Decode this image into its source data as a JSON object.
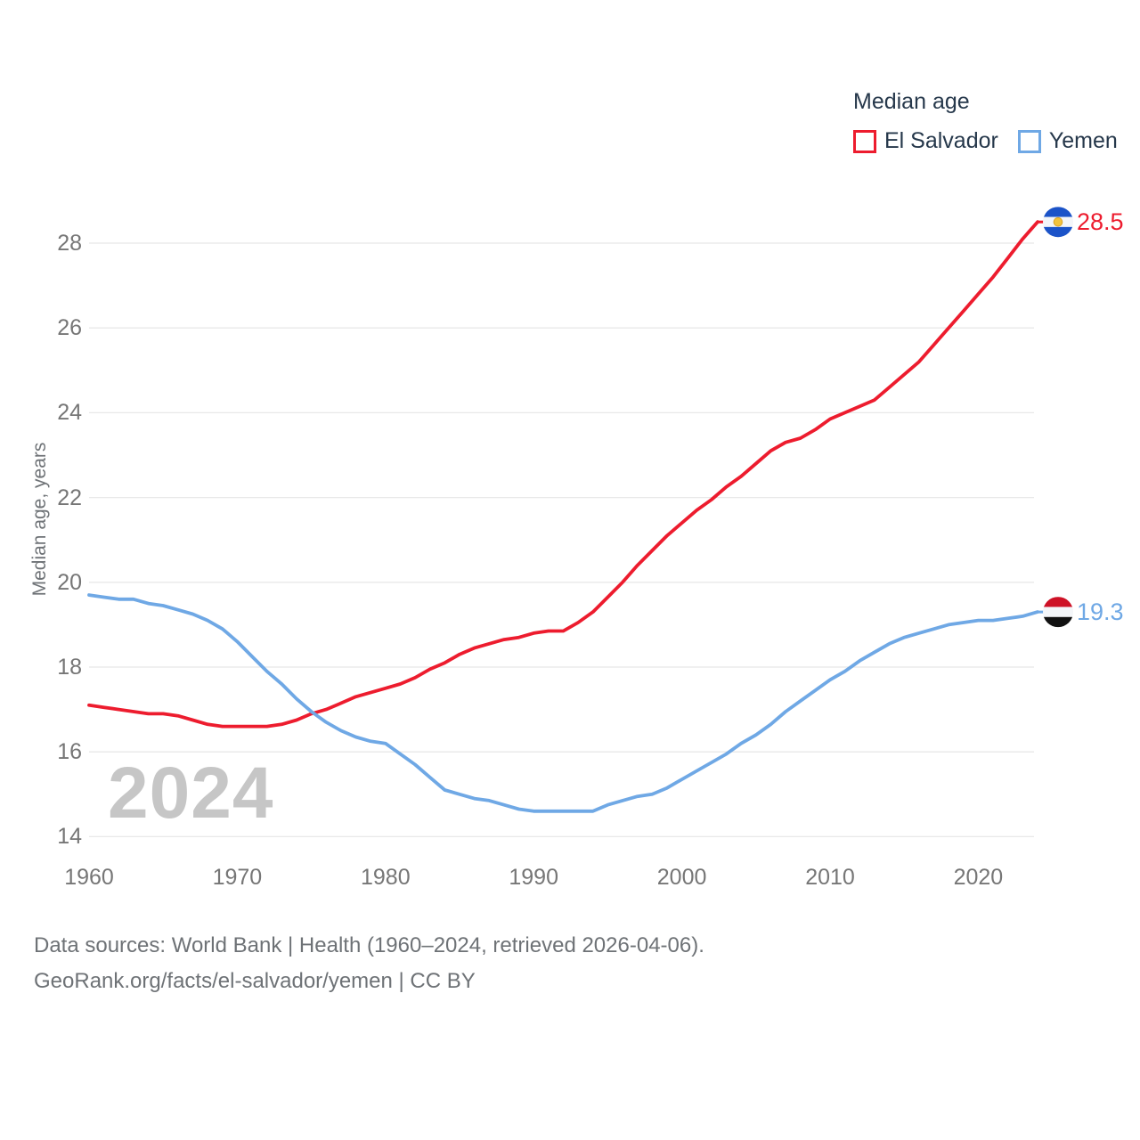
{
  "legend": {
    "title": "Median age",
    "items": [
      {
        "label": "El Salvador",
        "color": "#ED1C2E"
      },
      {
        "label": "Yemen",
        "color": "#6FA8E5"
      }
    ]
  },
  "watermark": "2024",
  "footer": {
    "line1": "Data sources: World Bank | Health (1960–2024, retrieved 2026-04-06).",
    "line2": "GeoRank.org/facts/el-salvador/yemen | CC BY"
  },
  "chart_data": {
    "type": "line",
    "title": "Median age",
    "xlabel": "",
    "ylabel": "Median age, years",
    "ylim": [
      13.6,
      29.2
    ],
    "xlim": [
      1960,
      2024
    ],
    "grid": "horizontal",
    "legend_position": "top-right",
    "yticks": [
      14,
      16,
      18,
      20,
      22,
      24,
      26,
      28
    ],
    "xticks": [
      1960,
      1970,
      1980,
      1990,
      2000,
      2010,
      2020
    ],
    "x": [
      1960,
      1961,
      1962,
      1963,
      1964,
      1965,
      1966,
      1967,
      1968,
      1969,
      1970,
      1971,
      1972,
      1973,
      1974,
      1975,
      1976,
      1977,
      1978,
      1979,
      1980,
      1981,
      1982,
      1983,
      1984,
      1985,
      1986,
      1987,
      1988,
      1989,
      1990,
      1991,
      1992,
      1993,
      1994,
      1995,
      1996,
      1997,
      1998,
      1999,
      2000,
      2001,
      2002,
      2003,
      2004,
      2005,
      2006,
      2007,
      2008,
      2009,
      2010,
      2011,
      2012,
      2013,
      2014,
      2015,
      2016,
      2017,
      2018,
      2019,
      2020,
      2021,
      2022,
      2023,
      2024
    ],
    "series": [
      {
        "name": "El Salvador",
        "color": "#ED1C2E",
        "end_value": 28.5,
        "end_label": "28.5",
        "flag": {
          "name": "el-salvador-flag-icon",
          "stripes": [
            "#1B53C8",
            "#F4F6F9",
            "#1B53C8"
          ],
          "emblem": "#F2C33D"
        },
        "values": [
          17.1,
          17.05,
          17.0,
          16.95,
          16.9,
          16.9,
          16.85,
          16.75,
          16.65,
          16.6,
          16.6,
          16.6,
          16.6,
          16.65,
          16.75,
          16.9,
          17.0,
          17.15,
          17.3,
          17.4,
          17.5,
          17.6,
          17.75,
          17.95,
          18.1,
          18.3,
          18.45,
          18.55,
          18.65,
          18.7,
          18.8,
          18.85,
          18.85,
          19.05,
          19.3,
          19.65,
          20.0,
          20.4,
          20.75,
          21.1,
          21.4,
          21.7,
          21.95,
          22.25,
          22.5,
          22.8,
          23.1,
          23.3,
          23.4,
          23.6,
          23.85,
          24.0,
          24.15,
          24.3,
          24.6,
          24.9,
          25.2,
          25.6,
          26.0,
          26.4,
          26.8,
          27.2,
          27.65,
          28.1,
          28.5
        ]
      },
      {
        "name": "Yemen",
        "color": "#6FA8E5",
        "end_value": 19.3,
        "end_label": "19.3",
        "flag": {
          "name": "yemen-flag-icon",
          "stripes": [
            "#CE1126",
            "#F4F6F9",
            "#111111"
          ],
          "emblem": null
        },
        "values": [
          19.7,
          19.65,
          19.6,
          19.6,
          19.5,
          19.45,
          19.35,
          19.25,
          19.1,
          18.9,
          18.6,
          18.25,
          17.9,
          17.6,
          17.25,
          16.95,
          16.7,
          16.5,
          16.35,
          16.25,
          16.2,
          15.95,
          15.7,
          15.4,
          15.1,
          15.0,
          14.9,
          14.85,
          14.75,
          14.65,
          14.6,
          14.6,
          14.6,
          14.6,
          14.6,
          14.75,
          14.85,
          14.95,
          15.0,
          15.15,
          15.35,
          15.55,
          15.75,
          15.95,
          16.2,
          16.4,
          16.65,
          16.95,
          17.2,
          17.45,
          17.7,
          17.9,
          18.15,
          18.35,
          18.55,
          18.7,
          18.8,
          18.9,
          19.0,
          19.05,
          19.1,
          19.1,
          19.15,
          19.2,
          19.3
        ]
      }
    ]
  }
}
